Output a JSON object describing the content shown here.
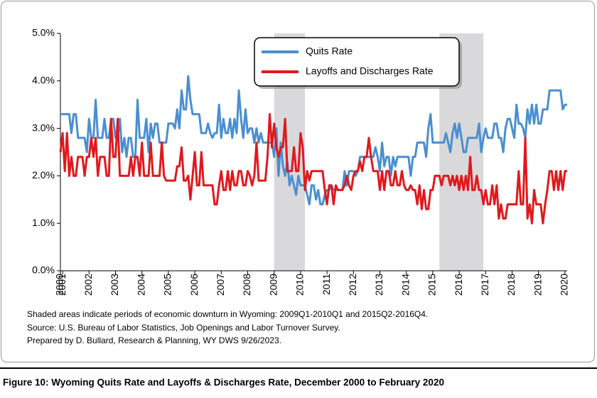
{
  "chart_data": {
    "type": "line",
    "caption": "Figure 10: Wyoming Quits Rate and Layoffs & Discharges Rate, December 2000 to February 2020",
    "notes": [
      "Shaded areas indicate periods of economic downturn in Wyoming: 2009Q1-2010Q1 and 2015Q2-2016Q4.",
      "Source: U.S. Bureau of Labor Statistics, Job Openings and Labor Turnover Survey.",
      "Prepared by D. Bullard, Research & Planning, WY DWS 9/26/2023."
    ],
    "categories": [
      "2000",
      "2001",
      null,
      null,
      null,
      null,
      null,
      null,
      null,
      null,
      null,
      null,
      null,
      "2002",
      null,
      null,
      null,
      null,
      null,
      null,
      null,
      null,
      null,
      null,
      null,
      "2003",
      null,
      null,
      null,
      null,
      null,
      null,
      null,
      null,
      null,
      null,
      null,
      "2004",
      null,
      null,
      null,
      null,
      null,
      null,
      null,
      null,
      null,
      null,
      null,
      "2005",
      null,
      null,
      null,
      null,
      null,
      null,
      null,
      null,
      null,
      null,
      null,
      "2006",
      null,
      null,
      null,
      null,
      null,
      null,
      null,
      null,
      null,
      null,
      null,
      "2007",
      null,
      null,
      null,
      null,
      null,
      null,
      null,
      null,
      null,
      null,
      null,
      "2008",
      null,
      null,
      null,
      null,
      null,
      null,
      null,
      null,
      null,
      null,
      null,
      "2009",
      null,
      null,
      null,
      null,
      null,
      null,
      null,
      null,
      null,
      null,
      null,
      "2010",
      null,
      null,
      null,
      null,
      null,
      null,
      null,
      null,
      null,
      null,
      null,
      "2011",
      null,
      null,
      null,
      null,
      null,
      null,
      null,
      null,
      null,
      null,
      null,
      "2012",
      null,
      null,
      null,
      null,
      null,
      null,
      null,
      null,
      null,
      null,
      null,
      "2013",
      null,
      null,
      null,
      null,
      null,
      null,
      null,
      null,
      null,
      null,
      null,
      "2014",
      null,
      null,
      null,
      null,
      null,
      null,
      null,
      null,
      null,
      null,
      null,
      "2015",
      null,
      null,
      null,
      null,
      null,
      null,
      null,
      null,
      null,
      null,
      null,
      "2016",
      null,
      null,
      null,
      null,
      null,
      null,
      null,
      null,
      null,
      null,
      null,
      "2017",
      null,
      null,
      null,
      null,
      null,
      null,
      null,
      null,
      null,
      null,
      null,
      "2018",
      null,
      null,
      null,
      null,
      null,
      null,
      null,
      null,
      null,
      null,
      null,
      "2019",
      null,
      null,
      null,
      null,
      null,
      null,
      null,
      null,
      null,
      null,
      null,
      "2020",
      null
    ],
    "series": [
      {
        "name": "Quits Rate",
        "color": "#4a8fd0",
        "values": [
          3.3,
          3.3,
          3.3,
          3.3,
          3.3,
          2.9,
          3.3,
          3.3,
          2.8,
          2.8,
          2.8,
          2.8,
          2.5,
          3.2,
          2.8,
          2.8,
          3.6,
          2.8,
          2.8,
          2.8,
          3.2,
          2.8,
          2.8,
          3.2,
          3.2,
          2.8,
          2.8,
          3.2,
          2.5,
          2.8,
          2.4,
          2.8,
          2.8,
          2.4,
          2.4,
          3.6,
          2.8,
          2.8,
          2.8,
          3.2,
          2.5,
          3.1,
          2.8,
          3.1,
          3.1,
          2.7,
          2.7,
          2.7,
          2.7,
          3.1,
          3.1,
          3.1,
          3.0,
          3.4,
          3.0,
          3.8,
          3.4,
          3.4,
          4.1,
          3.6,
          3.3,
          3.3,
          3.3,
          3.3,
          2.9,
          2.9,
          2.9,
          3.1,
          2.9,
          2.8,
          2.9,
          2.9,
          3.5,
          2.8,
          3.2,
          2.9,
          2.9,
          3.2,
          2.8,
          3.2,
          2.9,
          3.8,
          3.2,
          2.8,
          3.4,
          2.9,
          3.0,
          3.0,
          2.7,
          3.0,
          2.7,
          2.9,
          2.7,
          2.7,
          2.7,
          2.7,
          2.7,
          2.4,
          3.0,
          2.0,
          2.7,
          2.2,
          2.0,
          2.3,
          1.8,
          2.0,
          1.8,
          1.6,
          2.0,
          1.8,
          1.8,
          1.8,
          1.6,
          1.4,
          1.8,
          1.8,
          1.5,
          1.7,
          1.4,
          1.4,
          1.6,
          1.7,
          1.7,
          1.8,
          1.7,
          1.7,
          1.7,
          1.7,
          1.7,
          2.1,
          1.8,
          2.1,
          2.1,
          2.1,
          2.0,
          2.1,
          2.4,
          2.4,
          2.4,
          2.4,
          2.4,
          2.4,
          2.4,
          2.6,
          2.4,
          2.1,
          2.7,
          2.2,
          2.4,
          2.4,
          2.0,
          2.4,
          2.2,
          2.4,
          2.4,
          2.4,
          2.4,
          2.4,
          2.4,
          2.0,
          2.4,
          2.4,
          2.7,
          2.7,
          2.7,
          2.7,
          2.4,
          3.0,
          3.3,
          2.7,
          2.7,
          2.7,
          2.7,
          2.7,
          2.7,
          2.9,
          2.7,
          2.5,
          2.9,
          3.1,
          2.8,
          3.1,
          2.8,
          2.5,
          2.5,
          2.8,
          2.8,
          2.8,
          2.8,
          2.8,
          3.1,
          2.5,
          2.8,
          3.0,
          2.8,
          2.8,
          2.8,
          3.1,
          3.1,
          2.8,
          2.8,
          2.5,
          3.0,
          3.2,
          3.2,
          3.0,
          2.8,
          3.5,
          3.1,
          3.1,
          3.0,
          2.8,
          3.4,
          3.1,
          3.5,
          3.1,
          3.5,
          3.1,
          3.1,
          3.4,
          3.4,
          3.4,
          3.8,
          3.8,
          3.8,
          3.8,
          3.8,
          3.8,
          3.4,
          3.5,
          3.5
        ]
      },
      {
        "name": "Layoffs and Discharges Rate",
        "color": "#e0191c",
        "values": [
          2.5,
          2.9,
          2.1,
          2.9,
          2.0,
          2.4,
          2.0,
          2.0,
          2.4,
          2.4,
          2.4,
          2.0,
          2.4,
          2.4,
          2.8,
          2.4,
          2.8,
          2.0,
          2.4,
          2.4,
          2.4,
          2.0,
          2.0,
          3.2,
          2.4,
          2.4,
          3.2,
          2.0,
          2.0,
          2.0,
          2.0,
          2.0,
          2.4,
          2.0,
          2.4,
          2.4,
          2.0,
          2.7,
          2.0,
          2.0,
          2.0,
          2.7,
          2.0,
          2.0,
          2.0,
          2.0,
          2.7,
          2.0,
          1.9,
          1.9,
          1.9,
          1.9,
          1.9,
          2.2,
          2.2,
          2.6,
          1.9,
          1.9,
          2.0,
          1.5,
          2.0,
          2.5,
          1.8,
          1.8,
          2.5,
          1.8,
          1.8,
          1.8,
          1.8,
          1.8,
          1.4,
          1.4,
          1.8,
          2.1,
          1.7,
          1.7,
          2.1,
          1.7,
          2.1,
          1.8,
          1.8,
          2.1,
          2.1,
          1.8,
          1.8,
          2.1,
          2.0,
          1.8,
          2.0,
          2.7,
          1.9,
          1.9,
          1.9,
          1.9,
          2.4,
          3.3,
          2.6,
          3.1,
          2.6,
          2.4,
          2.6,
          2.6,
          3.2,
          2.1,
          2.1,
          2.1,
          2.6,
          2.1,
          2.1,
          2.9,
          2.6,
          1.7,
          2.1,
          1.9,
          2.1,
          2.1,
          2.1,
          2.1,
          2.1,
          2.1,
          1.7,
          1.4,
          1.8,
          1.8,
          1.4,
          1.8,
          1.7,
          1.7,
          1.7,
          1.8,
          2.0,
          1.8,
          1.7,
          2.0,
          2.1,
          2.1,
          2.3,
          2.1,
          2.4,
          2.4,
          2.8,
          2.4,
          2.1,
          2.1,
          2.1,
          1.7,
          2.1,
          1.7,
          2.1,
          2.1,
          1.8,
          1.8,
          2.1,
          1.8,
          1.8,
          2.1,
          1.8,
          1.7,
          1.7,
          1.8,
          1.7,
          1.7,
          1.4,
          1.8,
          1.3,
          1.7,
          1.3,
          1.3,
          1.7,
          1.7,
          2.0,
          2.0,
          2.0,
          1.8,
          2.0,
          2.0,
          2.0,
          1.8,
          2.0,
          1.8,
          2.0,
          1.7,
          2.0,
          1.7,
          2.0,
          1.7,
          2.4,
          1.7,
          1.7,
          2.0,
          1.7,
          1.7,
          1.4,
          1.7,
          1.4,
          1.4,
          1.8,
          1.4,
          1.8,
          1.1,
          1.4,
          1.1,
          1.1,
          1.4,
          1.4,
          1.4,
          1.4,
          1.4,
          2.1,
          1.4,
          1.4,
          2.8,
          1.1,
          1.4,
          1.0,
          1.7,
          1.4,
          1.4,
          1.4,
          1.0,
          1.4,
          1.7,
          2.1,
          2.1,
          1.7,
          2.1,
          1.7,
          2.1,
          1.7,
          2.1,
          2.1
        ]
      }
    ],
    "shaded_periods": [
      {
        "start": 97,
        "end": 111
      },
      {
        "start": 172,
        "end": 192
      }
    ],
    "shade_color": "#d9d9db",
    "ylim": [
      0,
      5
    ],
    "yticks": [
      {
        "value": 0,
        "label": "0.0%"
      },
      {
        "value": 1,
        "label": "1.0%"
      },
      {
        "value": 2,
        "label": "2.0%"
      },
      {
        "value": 3,
        "label": "3.0%"
      },
      {
        "value": 4,
        "label": "4.0%"
      },
      {
        "value": 5,
        "label": "5.0%"
      }
    ],
    "grid": false,
    "legend": "top-right"
  }
}
